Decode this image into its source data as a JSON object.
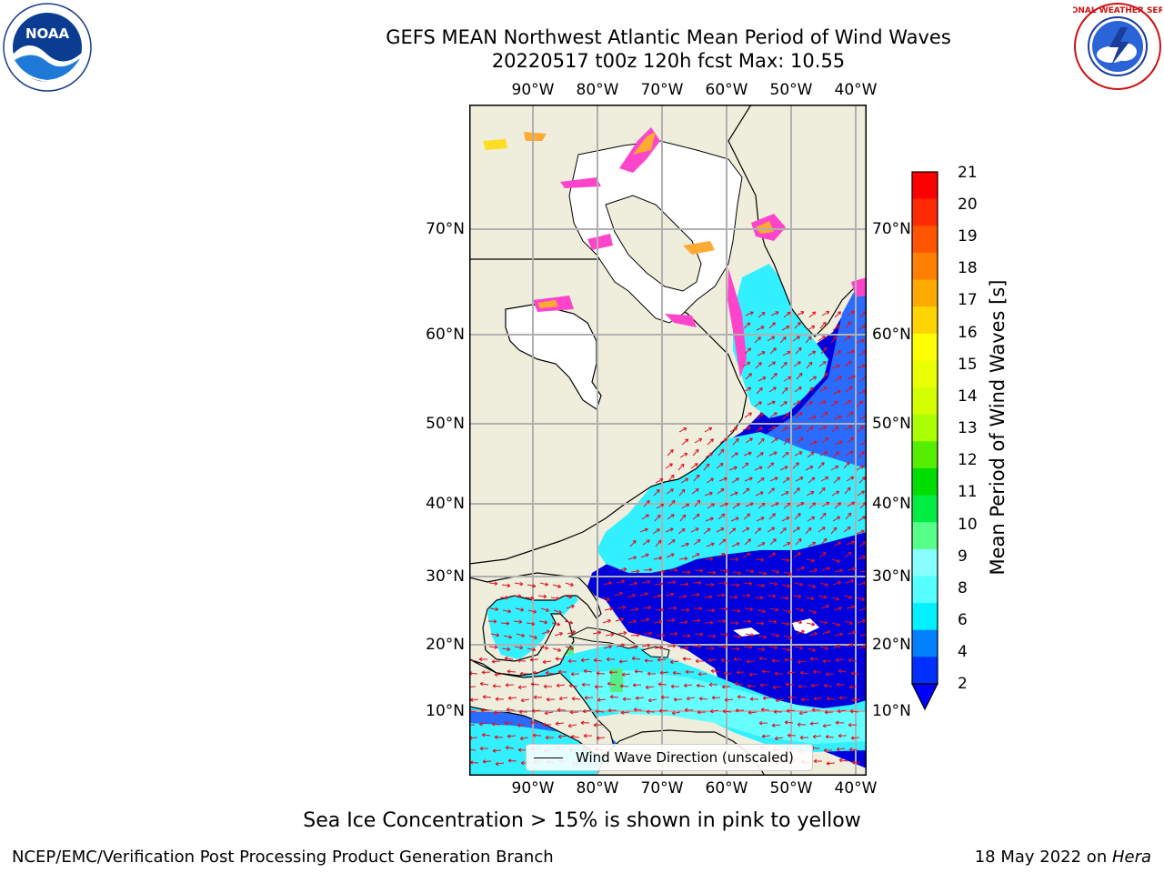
{
  "title": {
    "line1": "GEFS MEAN Northwest Atlantic Mean Period of Wind Waves",
    "line2": "20220517 t00z 120h fcst   Max: 10.55"
  },
  "map": {
    "lon_labels": [
      "90°W",
      "80°W",
      "70°W",
      "60°W",
      "50°W",
      "40°W"
    ],
    "lat_labels": [
      "70°N",
      "60°N",
      "50°N",
      "40°N",
      "30°N",
      "20°N",
      "10°N"
    ],
    "ocean_colors": {
      "deep": "#0000dd",
      "mid": "#2a6cff",
      "cyan": "#32f0ff",
      "light": "#66ffff",
      "land": "#efeddb",
      "ice_pink": "#ff44cc",
      "ice_orange": "#ffaa33",
      "ice_yellow": "#ffdd22",
      "arrow": "#e01020"
    }
  },
  "legend": {
    "label": "Wind Wave Direction (unscaled)"
  },
  "colorbar": {
    "label": "Mean Period of Wind Waves [s]",
    "ticks": [
      "21",
      "20",
      "19",
      "18",
      "17",
      "16",
      "15",
      "14",
      "13",
      "12",
      "11",
      "10",
      "9",
      "8",
      "6",
      "4",
      "2"
    ],
    "colors": [
      "#ff0000",
      "#ff2a00",
      "#ff5500",
      "#ff7f00",
      "#ffaa00",
      "#ffd400",
      "#ffff00",
      "#eaff00",
      "#d4ff00",
      "#aaff00",
      "#55ee00",
      "#00dd00",
      "#00ee44",
      "#55ff88",
      "#88ffff",
      "#55ffff",
      "#00f0ff",
      "#0080ff",
      "#0030ff"
    ]
  },
  "note": "Sea Ice Concentration > 15% is shown in pink to yellow",
  "footer": {
    "left": "NCEP/EMC/Verification Post Processing Product Generation Branch",
    "date": "18 May 2022 on ",
    "host": "Hera"
  },
  "logos": {
    "noaa": "NOAA",
    "nws": "NATIONAL WEATHER SERVICE"
  }
}
